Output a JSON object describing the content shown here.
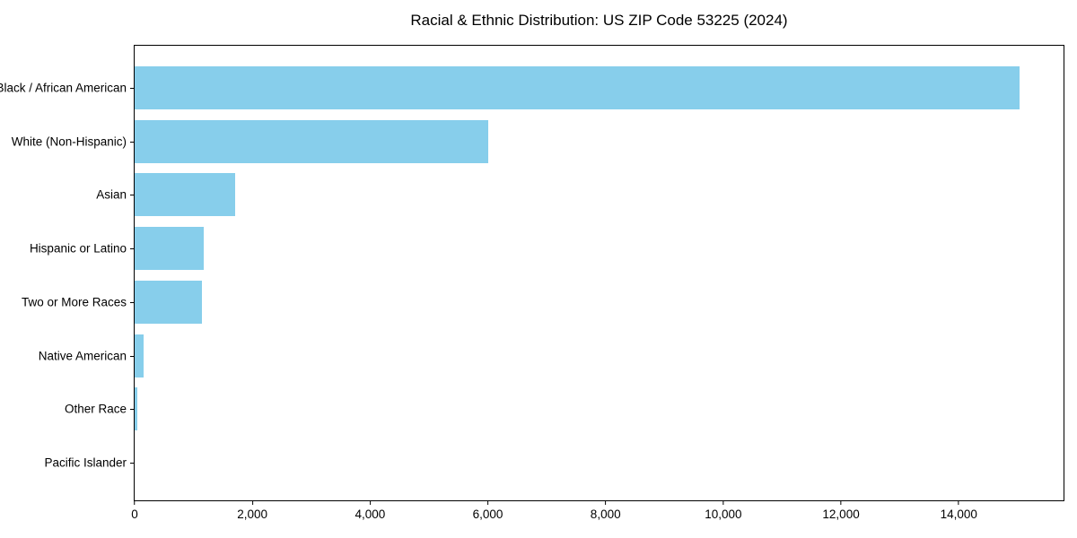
{
  "chart_data": {
    "type": "bar",
    "orientation": "horizontal",
    "title": "Racial & Ethnic Distribution: US ZIP Code 53225 (2024)",
    "categories": [
      "Black / African American",
      "White (Non-Hispanic)",
      "Asian",
      "Hispanic or Latino",
      "Two or More Races",
      "Native American",
      "Other Race",
      "Pacific Islander"
    ],
    "values": [
      15030,
      6000,
      1700,
      1170,
      1140,
      150,
      50,
      0
    ],
    "xlabel": "",
    "ylabel": "",
    "xlim": [
      0,
      15780
    ],
    "xticks": [
      0,
      2000,
      4000,
      6000,
      8000,
      10000,
      12000,
      14000
    ],
    "xtick_labels": [
      "0",
      "2,000",
      "4,000",
      "6,000",
      "8,000",
      "10,000",
      "12,000",
      "14,000"
    ],
    "bar_color": "#87CEEB",
    "axis_color": "#000000",
    "background_color": "#ffffff",
    "grid": false,
    "legend_position": "none"
  }
}
